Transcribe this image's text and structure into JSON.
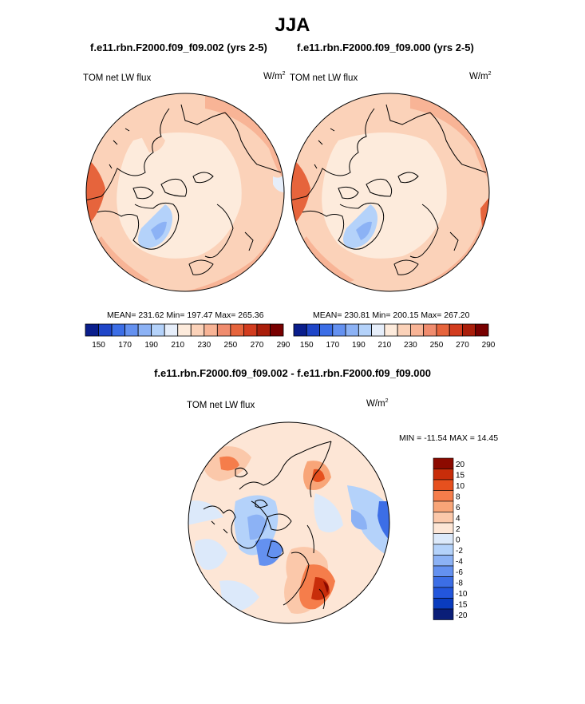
{
  "title": "JJA",
  "case_left": "f.e11.rbn.F2000.f09_f09.002 (yrs 2-5)",
  "case_right": "f.e11.rbn.F2000.f09_f09.000 (yrs 2-5)",
  "diff_title": "f.e11.rbn.F2000.f09_f09.002 - f.e11.rbn.F2000.f09_f09.000",
  "colors": {
    "abs_palette": [
      "#0a1e8c",
      "#1f46c8",
      "#3c6ee6",
      "#6491f0",
      "#8cb2f5",
      "#b4d2fa",
      "#e6eefa",
      "#fdebdc",
      "#fbd2b9",
      "#f8b496",
      "#f08c6e",
      "#e6643c",
      "#d23c1e",
      "#aa1e0a",
      "#780000"
    ],
    "diff_palette": [
      "#0a1e78",
      "#0a3cbe",
      "#2356dc",
      "#3c6ee6",
      "#6491f0",
      "#8cb2f5",
      "#b4d2fa",
      "#dce9fa",
      "#fde6d6",
      "#fbc8aa",
      "#f8a578",
      "#f57d4b",
      "#e6501e",
      "#c82d0a",
      "#8c0a00"
    ],
    "coast": "#000000"
  },
  "chart_data": [
    {
      "type": "heatmap",
      "projection": "north polar stereographic",
      "field": "TOM net LW flux",
      "units": "W/m2",
      "label_left": "TOM net LW flux",
      "units_base": "W/m",
      "units_exp": "2",
      "stats_text": "MEAN= 231.62  Min= 197.47  Max= 265.36",
      "mean": 231.62,
      "min": 197.47,
      "max": 265.36,
      "colorbar_levels": [
        150,
        160,
        170,
        180,
        190,
        200,
        210,
        220,
        230,
        240,
        250,
        260,
        270,
        280,
        290
      ],
      "colorbar_tick_labels": [
        "150",
        "170",
        "190",
        "210",
        "230",
        "250",
        "270",
        "290"
      ]
    },
    {
      "type": "heatmap",
      "projection": "north polar stereographic",
      "field": "TOM net LW flux",
      "units": "W/m2",
      "label_left": "TOM net LW flux",
      "units_base": "W/m",
      "units_exp": "2",
      "stats_text": "MEAN= 230.81  Min= 200.15  Max= 267.20",
      "mean": 230.81,
      "min": 200.15,
      "max": 267.2,
      "colorbar_levels": [
        150,
        160,
        170,
        180,
        190,
        200,
        210,
        220,
        230,
        240,
        250,
        260,
        270,
        280,
        290
      ],
      "colorbar_tick_labels": [
        "150",
        "170",
        "190",
        "210",
        "230",
        "250",
        "270",
        "290"
      ]
    },
    {
      "type": "heatmap",
      "projection": "north polar stereographic",
      "field": "TOM net LW flux (difference)",
      "units": "W/m2",
      "label_left": "TOM net LW flux",
      "units_base": "W/m",
      "units_exp": "2",
      "stats_text": "MIN = -11.54 MAX =  14.45",
      "min": -11.54,
      "max": 14.45,
      "colorbar_tick_labels": [
        "20",
        "15",
        "10",
        "8",
        "6",
        "4",
        "2",
        "0",
        "-2",
        "-4",
        "-6",
        "-8",
        "-10",
        "-15",
        "-20"
      ]
    }
  ]
}
